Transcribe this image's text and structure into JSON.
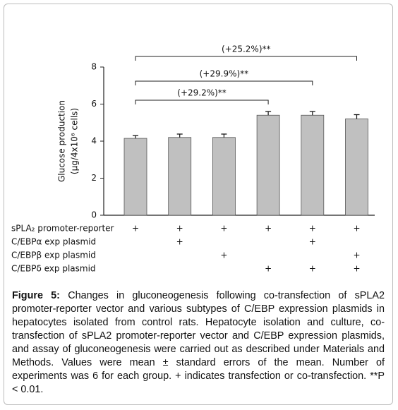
{
  "chart_data": {
    "type": "bar",
    "ylabel": [
      "Glucose production",
      "(μg/4x10⁶ cells)"
    ],
    "values": [
      4.15,
      4.2,
      4.2,
      5.4,
      5.4,
      5.2
    ],
    "errors": [
      0.15,
      0.18,
      0.18,
      0.2,
      0.2,
      0.23
    ],
    "color": "#c0c0c0",
    "ylim": [
      0,
      8
    ],
    "yticks": [
      0,
      2,
      4,
      6,
      8
    ],
    "annotations": [
      "(+29.2%)**",
      "(+29.9%)**",
      "(+25.2%)**"
    ],
    "conditions": [
      {
        "label": "sPLA₂ promoter-reporter",
        "cells": [
          "+",
          "+",
          "+",
          "+",
          "+",
          "+"
        ]
      },
      {
        "label": "C/EBPα exp plasmid",
        "cells": [
          null,
          "+",
          null,
          null,
          "+",
          null
        ]
      },
      {
        "label": "C/EBPβ exp plasmid",
        "cells": [
          null,
          null,
          "+",
          null,
          null,
          "+"
        ]
      },
      {
        "label": "C/EBPδ exp plasmid",
        "cells": [
          null,
          null,
          null,
          "+",
          "+",
          "+"
        ]
      }
    ]
  },
  "caption": {
    "label": "Figure 5:",
    "text": "Changes in gluconeogenesis following co-transfection of sPLA2 promoter-reporter vector and various subtypes of C/EBP expression plasmids in hepatocytes isolated from control rats. Hepatocyte isolation and culture, co-transfection of sPLA2 promoter-reporter vector and C/EBP expression plasmids, and assay of gluconeogenesis were carried out as described under Materials and Methods. Values were mean ± standard errors of the mean. Number of experiments was 6 for each group. + indicates transfection or co-transfection. **P < 0.01."
  }
}
